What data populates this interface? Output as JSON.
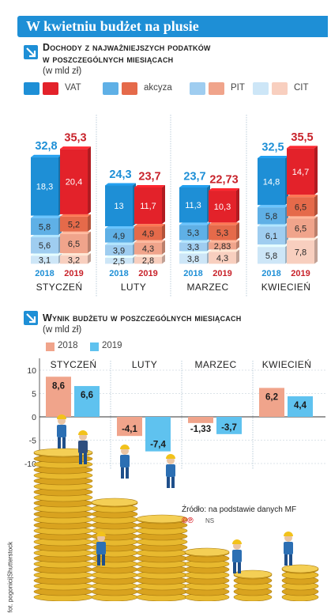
{
  "header": {
    "title": "W kwietniu budżet na plusie"
  },
  "section1": {
    "title_line1": "Dochody z najważniejszych podatków",
    "title_line2": "w poszczególnych miesiącach",
    "unit": "(w mld zł)",
    "legend": [
      {
        "label": "VAT",
        "color_2018": "#1e8fd6",
        "color_2019": "#e3222a"
      },
      {
        "label": "akcyza",
        "color_2018": "#5fb0e6",
        "color_2019": "#e56a4a"
      },
      {
        "label": "PIT",
        "color_2018": "#9fcdf0",
        "color_2019": "#f0a48b"
      },
      {
        "label": "CIT",
        "color_2018": "#cde6f7",
        "color_2019": "#f8cfbf"
      }
    ]
  },
  "section2": {
    "title": "Wynik budżetu w poszczególnych miesiącach",
    "unit": "(w mld zł)",
    "legend": [
      {
        "label": "2018",
        "color": "#f0a48b"
      },
      {
        "label": "2019",
        "color": "#5fc2ef"
      }
    ]
  },
  "footer": {
    "source": "Źródło: na podstawie danych MF",
    "credit_marks": "©℗",
    "initials": "NS",
    "photo_credit": "fot. pogonici|Shutterstock"
  },
  "chart_data": [
    {
      "type": "bar",
      "subtype": "stacked",
      "categories": [
        "STYCZEŃ",
        "LUTY",
        "MARZEC",
        "KWIECIEŃ"
      ],
      "years": [
        "2018",
        "2019"
      ],
      "stack_order": [
        "CIT",
        "PIT",
        "akcyza",
        "VAT"
      ],
      "totals": {
        "2018": [
          "32,8",
          "24,3",
          "23,7",
          "32,5"
        ],
        "2019": [
          "35,3",
          "23,7",
          "22,73",
          "35,5"
        ]
      },
      "series": [
        {
          "name": "VAT",
          "2018": [
            18.3,
            13,
            11.3,
            14.8
          ],
          "2019": [
            20.4,
            11.7,
            10.3,
            14.7
          ],
          "labels_2018": [
            "18,3",
            "13",
            "11,3",
            "14,8"
          ],
          "labels_2019": [
            "20,4",
            "11,7",
            "10,3",
            "14,7"
          ]
        },
        {
          "name": "akcyza",
          "2018": [
            5.8,
            4.9,
            5.3,
            5.8
          ],
          "2019": [
            5.2,
            4.9,
            5.3,
            6.5
          ],
          "labels_2018": [
            "5,8",
            "4,9",
            "5,3",
            "5,8"
          ],
          "labels_2019": [
            "5,2",
            "4,9",
            "5,3",
            "6,5"
          ]
        },
        {
          "name": "PIT",
          "2018": [
            5.6,
            3.9,
            3.3,
            6.1
          ],
          "2019": [
            6.5,
            4.3,
            2.83,
            6.5
          ],
          "labels_2018": [
            "5,6",
            "3,9",
            "3,3",
            "6,1"
          ],
          "labels_2019": [
            "6,5",
            "4,3",
            "2,83",
            "6,5"
          ]
        },
        {
          "name": "CIT",
          "2018": [
            3.1,
            2.5,
            3.8,
            5.8
          ],
          "2019": [
            3.2,
            2.8,
            4.3,
            7.8
          ],
          "labels_2018": [
            "3,1",
            "2,5",
            "3,8",
            "5,8"
          ],
          "labels_2019": [
            "3,2",
            "2,8",
            "4,3",
            "7,8"
          ]
        }
      ]
    },
    {
      "type": "bar",
      "categories": [
        "STYCZEŃ",
        "LUTY",
        "MARZEC",
        "KWIECIEŃ"
      ],
      "ylim": [
        -10,
        10
      ],
      "yticks": [
        "10",
        "5",
        "0",
        "-5",
        "-10"
      ],
      "series": [
        {
          "name": "2018",
          "values": [
            8.6,
            -4.1,
            -1.33,
            6.2
          ],
          "labels": [
            "8,6",
            "-4,1",
            "-1,33",
            "6,2"
          ]
        },
        {
          "name": "2019",
          "values": [
            6.6,
            -7.4,
            -3.7,
            4.4
          ],
          "labels": [
            "6,6",
            "-7,4",
            "-3,7",
            "4,4"
          ]
        }
      ]
    }
  ]
}
